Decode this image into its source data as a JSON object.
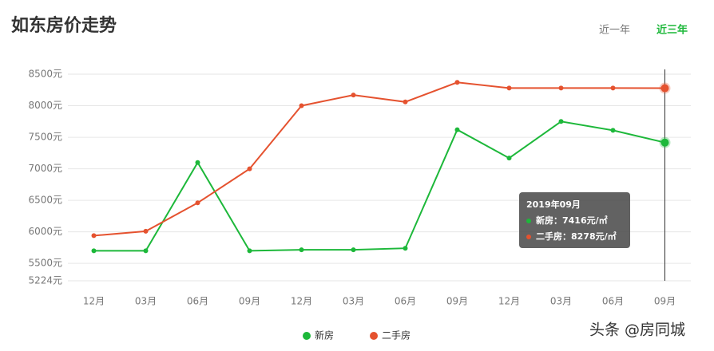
{
  "chart_data": {
    "type": "line",
    "title": "如东房价走势",
    "buttons": [
      "近一年",
      "近三年"
    ],
    "categories": [
      "12月",
      "03月",
      "06月",
      "09月",
      "12月",
      "03月",
      "06月",
      "09月",
      "12月",
      "03月",
      "06月",
      "09月"
    ],
    "series": [
      {
        "name": "新房",
        "color": "#1db83a",
        "values": [
          5700,
          5700,
          7100,
          5700,
          5715,
          5715,
          5740,
          7620,
          7170,
          7750,
          7610,
          7416
        ]
      },
      {
        "name": "二手房",
        "color": "#e5522f",
        "values": [
          5940,
          6010,
          6460,
          7000,
          8000,
          8170,
          8060,
          8370,
          8280,
          8280,
          8280,
          8278
        ]
      }
    ],
    "ylim": [
      5224,
      8576
    ],
    "yticks": [
      {
        "value": 5224,
        "label": "5224元"
      },
      {
        "value": 5500,
        "label": "5500元"
      },
      {
        "value": 6000,
        "label": "6000元"
      },
      {
        "value": 6500,
        "label": "6500元"
      },
      {
        "value": 7000,
        "label": "7000元"
      },
      {
        "value": 7500,
        "label": "7500元"
      },
      {
        "value": 8000,
        "label": "8000元"
      },
      {
        "value": 8500,
        "label": "8500元"
      }
    ],
    "grid": true,
    "legend": "bottom",
    "tooltip": {
      "title": "2019年09月",
      "items": [
        "新房：7416元/㎡",
        "二手房：8278元/㎡"
      ]
    },
    "watermark": "头条 @房同城"
  }
}
